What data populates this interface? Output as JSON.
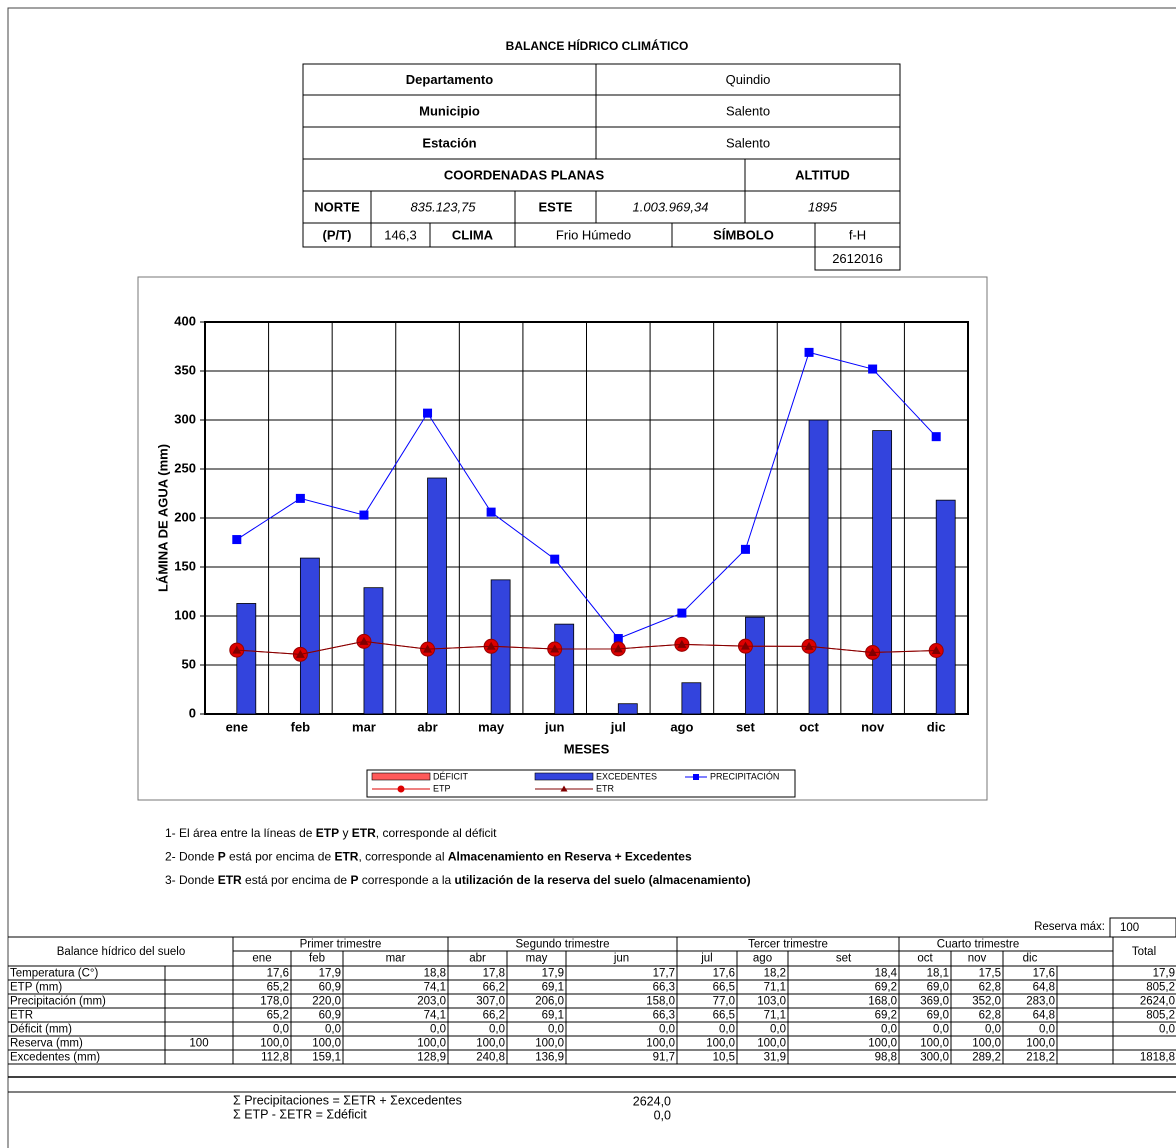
{
  "header": {
    "title": "BALANCE HÍDRICO CLIMÁTICO",
    "rows": [
      [
        "Departamento",
        "Quindio"
      ],
      [
        "Municipio",
        "Salento"
      ],
      [
        "Estación",
        "Salento"
      ],
      [
        "COORDENADAS PLANAS",
        "ALTITUD"
      ],
      [
        "NORTE",
        "835.123,75",
        "ESTE",
        "1.003.969,34",
        "1895"
      ],
      [
        "(P/T)",
        "146,3",
        "CLIMA",
        "Frio Húmedo",
        "SÍMBOLO",
        "f-H"
      ],
      [
        "2612016"
      ]
    ]
  },
  "chart_data": {
    "type": "bar",
    "x_label": "MESES",
    "y_label": "LÁMINA DE AGUA (mm)",
    "categories": [
      "ene",
      "feb",
      "mar",
      "abr",
      "may",
      "jun",
      "jul",
      "ago",
      "set",
      "oct",
      "nov",
      "dic"
    ],
    "ylim": [
      0,
      400
    ],
    "yticks": [
      0,
      50,
      100,
      150,
      200,
      250,
      300,
      350,
      400
    ],
    "grid": true,
    "series": [
      {
        "name": "DÉFICIT",
        "type": "bar",
        "color": "#ff5a5a",
        "values": [
          0,
          0,
          0,
          0,
          0,
          0,
          0,
          0,
          0,
          0,
          0,
          0
        ]
      },
      {
        "name": "EXCEDENTES",
        "type": "bar",
        "color": "#3344dd",
        "values": [
          112.8,
          159.1,
          128.9,
          240.8,
          136.9,
          91.7,
          10.5,
          31.9,
          98.8,
          300,
          289.2,
          218.2
        ]
      },
      {
        "name": "PRECIPITACIÓN",
        "type": "line",
        "marker": "square",
        "color": "#0000ff",
        "values": [
          178,
          220,
          203,
          307,
          206,
          158,
          77,
          103,
          168,
          369,
          352,
          283
        ]
      },
      {
        "name": "ETP",
        "type": "line",
        "marker": "circle",
        "color": "#dd0000",
        "values": [
          65.2,
          60.9,
          74.1,
          66.2,
          69.1,
          66.3,
          66.5,
          71.1,
          69.2,
          69,
          62.8,
          64.8
        ]
      },
      {
        "name": "ETR",
        "type": "line",
        "marker": "triangle",
        "color": "#800000",
        "values": [
          65.2,
          60.9,
          74.1,
          66.2,
          69.1,
          66.3,
          66.5,
          71.1,
          69.2,
          69,
          62.8,
          64.8
        ]
      }
    ]
  },
  "notes": [
    [
      {
        "text": "1- El área entre la líneas de ",
        "bold": false
      },
      {
        "text": "ETP",
        "bold": true
      },
      {
        "text": " y ",
        "bold": false
      },
      {
        "text": "ETR",
        "bold": true
      },
      {
        "text": ", corresponde al déficit",
        "bold": false
      }
    ],
    [
      {
        "text": "2- Donde ",
        "bold": false
      },
      {
        "text": "P",
        "bold": true
      },
      {
        "text": " está por encima de ",
        "bold": false
      },
      {
        "text": "ETR",
        "bold": true
      },
      {
        "text": ", corresponde al ",
        "bold": false
      },
      {
        "text": "Almacenamiento en Reserva + Excedentes",
        "bold": true
      }
    ],
    [
      {
        "text": "3- Donde ",
        "bold": false
      },
      {
        "text": "ETR",
        "bold": true
      },
      {
        "text": " está por encima de ",
        "bold": false
      },
      {
        "text": "P",
        "bold": true
      },
      {
        "text": " corresponde a la ",
        "bold": false
      },
      {
        "text": "utilización de la reserva del suelo (almacenamiento)",
        "bold": true
      }
    ]
  ],
  "table": {
    "title": "Balance hídrico del suelo",
    "reserva_max_label": "Reserva máx:",
    "reserva_max": "100",
    "trimesters": [
      "Primer trimestre",
      "Segundo trimestre",
      "Tercer trimestre",
      "Cuarto trimestre"
    ],
    "months": [
      "ene",
      "feb",
      "mar",
      "abr",
      "may",
      "jun",
      "jul",
      "ago",
      "set",
      "oct",
      "nov",
      "dic"
    ],
    "total_label": "Total",
    "rows": [
      {
        "label": "Temperatura (C°)",
        "values": [
          "17,6",
          "17,9",
          "18,8",
          "17,8",
          "17,9",
          "17,7",
          "17,6",
          "18,2",
          "18,4",
          "18,1",
          "17,5",
          "17,6"
        ],
        "total": "17,9"
      },
      {
        "label": "ETP (mm)",
        "values": [
          "65,2",
          "60,9",
          "74,1",
          "66,2",
          "69,1",
          "66,3",
          "66,5",
          "71,1",
          "69,2",
          "69,0",
          "62,8",
          "64,8"
        ],
        "total": "805,2"
      },
      {
        "label": "Precipitación (mm)",
        "values": [
          "178,0",
          "220,0",
          "203,0",
          "307,0",
          "206,0",
          "158,0",
          "77,0",
          "103,0",
          "168,0",
          "369,0",
          "352,0",
          "283,0"
        ],
        "total": "2624,0"
      },
      {
        "label": "ETR",
        "values": [
          "65,2",
          "60,9",
          "74,1",
          "66,2",
          "69,1",
          "66,3",
          "66,5",
          "71,1",
          "69,2",
          "69,0",
          "62,8",
          "64,8"
        ],
        "total": "805,2"
      },
      {
        "label": "Déficit (mm)",
        "values": [
          "0,0",
          "0,0",
          "0,0",
          "0,0",
          "0,0",
          "0,0",
          "0,0",
          "0,0",
          "0,0",
          "0,0",
          "0,0",
          "0,0"
        ],
        "total": "0,0"
      },
      {
        "label": "Reserva (mm)",
        "extra": "100",
        "values": [
          "100,0",
          "100,0",
          "100,0",
          "100,0",
          "100,0",
          "100,0",
          "100,0",
          "100,0",
          "100,0",
          "100,0",
          "100,0",
          "100,0"
        ]
      },
      {
        "label": "Excedentes (mm)",
        "values": [
          "112,8",
          "159,1",
          "128,9",
          "240,8",
          "136,9",
          "91,7",
          "10,5",
          "31,9",
          "98,8",
          "300,0",
          "289,2",
          "218,2"
        ],
        "total": "1818,8"
      }
    ]
  },
  "sums": [
    {
      "formula": "Σ Precipitaciones = ΣETR + Σexcedentes",
      "value": "2624,0"
    },
    {
      "formula": "Σ ETP - ΣETR = Σdéficit",
      "value": "0,0"
    }
  ]
}
